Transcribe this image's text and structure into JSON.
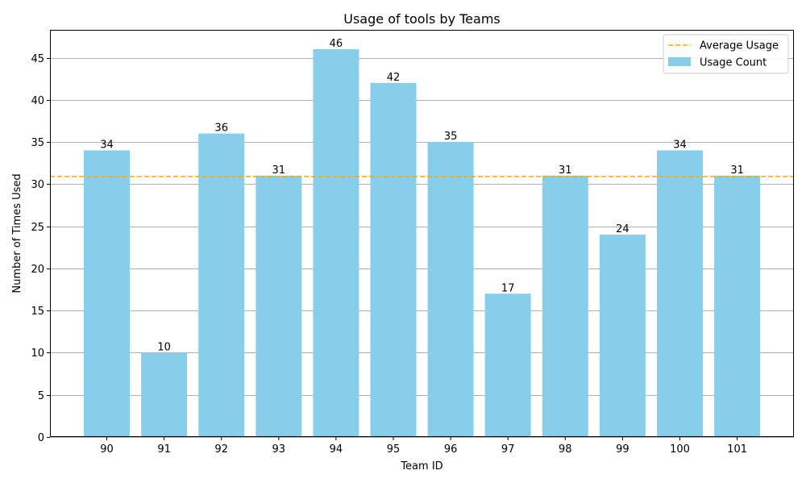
{
  "chart_data": {
    "type": "bar",
    "title": "Usage of tools by Teams",
    "xlabel": "Team ID",
    "ylabel": "Number of Times Used",
    "categories": [
      "90",
      "91",
      "92",
      "93",
      "94",
      "95",
      "96",
      "97",
      "98",
      "99",
      "100",
      "101"
    ],
    "series": [
      {
        "name": "Usage Count",
        "values": [
          34,
          10,
          36,
          31,
          46,
          42,
          35,
          17,
          31,
          24,
          34,
          31
        ],
        "color": "#87CEEB"
      }
    ],
    "average": {
      "name": "Average Usage",
      "value": 30.9,
      "color": "#FFA500",
      "style": "dashed"
    },
    "ylim": [
      0,
      48.3
    ],
    "yticks": [
      0,
      5,
      10,
      15,
      20,
      25,
      30,
      35,
      40,
      45
    ],
    "grid": {
      "y": true,
      "x": false
    },
    "legend": {
      "placement": "top-right",
      "entries": [
        "Average Usage",
        "Usage Count"
      ]
    },
    "data_labels": true
  }
}
